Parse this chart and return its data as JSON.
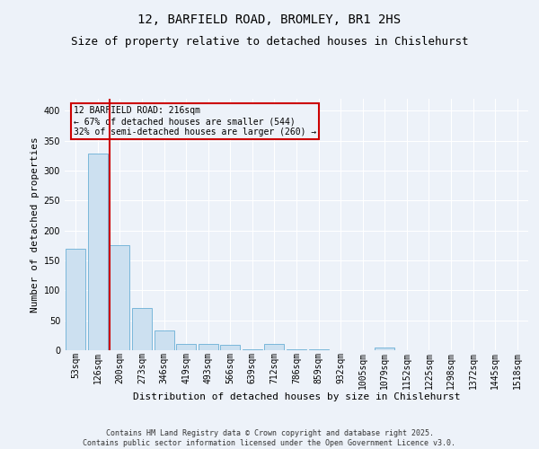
{
  "title1": "12, BARFIELD ROAD, BROMLEY, BR1 2HS",
  "title2": "Size of property relative to detached houses in Chislehurst",
  "xlabel": "Distribution of detached houses by size in Chislehurst",
  "ylabel": "Number of detached properties",
  "categories": [
    "53sqm",
    "126sqm",
    "200sqm",
    "273sqm",
    "346sqm",
    "419sqm",
    "493sqm",
    "566sqm",
    "639sqm",
    "712sqm",
    "786sqm",
    "859sqm",
    "932sqm",
    "1005sqm",
    "1079sqm",
    "1152sqm",
    "1225sqm",
    "1298sqm",
    "1372sqm",
    "1445sqm",
    "1518sqm"
  ],
  "values": [
    170,
    328,
    175,
    70,
    33,
    10,
    10,
    9,
    2,
    10,
    2,
    1,
    0,
    0,
    4,
    0,
    0,
    0,
    0,
    0,
    0
  ],
  "bar_color": "#cce0f0",
  "bar_edge_color": "#6aafd6",
  "vline_index": 2,
  "vline_color": "#cc0000",
  "annotation_text": "12 BARFIELD ROAD: 216sqm\n← 67% of detached houses are smaller (544)\n32% of semi-detached houses are larger (260) →",
  "annotation_box_color": "#cc0000",
  "ylim": [
    0,
    420
  ],
  "yticks": [
    0,
    50,
    100,
    150,
    200,
    250,
    300,
    350,
    400
  ],
  "background_color": "#edf2f9",
  "grid_color": "#ffffff",
  "footer_text": "Contains HM Land Registry data © Crown copyright and database right 2025.\nContains public sector information licensed under the Open Government Licence v3.0.",
  "title1_fontsize": 10,
  "title2_fontsize": 9,
  "xlabel_fontsize": 8,
  "ylabel_fontsize": 8,
  "tick_fontsize": 7,
  "footer_fontsize": 6,
  "annot_fontsize": 7
}
